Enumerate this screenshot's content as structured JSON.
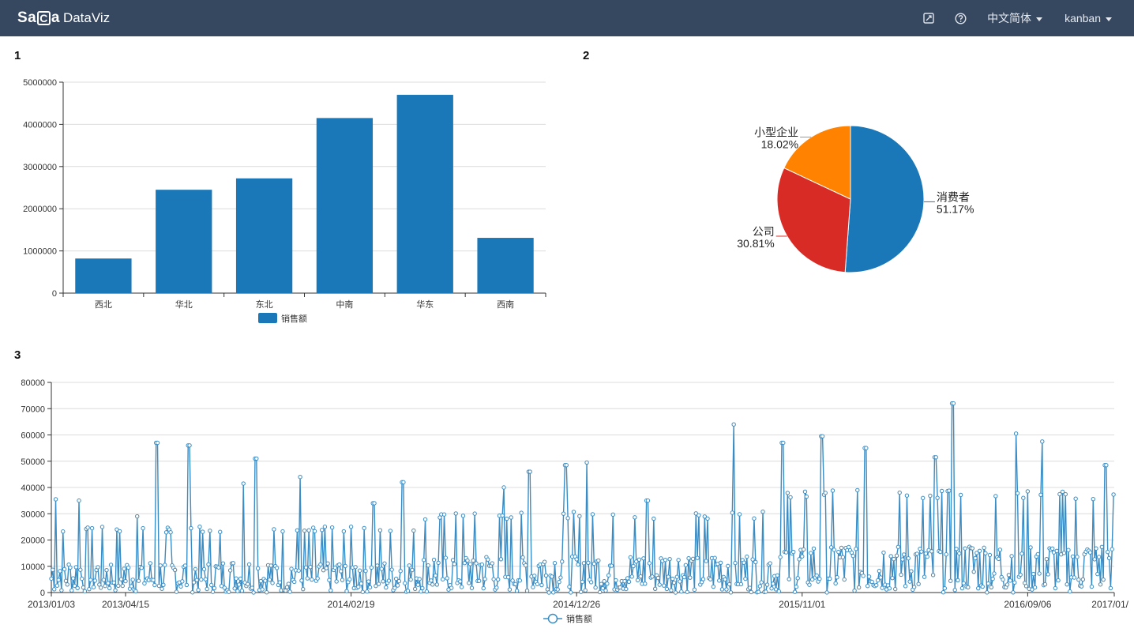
{
  "header": {
    "brand_mark": "Sa",
    "brand_mark2": "a",
    "brand_text": "DataViz",
    "icons": [
      "edit-icon",
      "help-icon"
    ],
    "language_label": "中文简体",
    "user_label": "kanban"
  },
  "panels": [
    {
      "title": "1"
    },
    {
      "title": "2"
    },
    {
      "title": "3"
    }
  ],
  "chart_data": [
    {
      "type": "bar",
      "title": "",
      "categories": [
        "西北",
        "华北",
        "东北",
        "中南",
        "华东",
        "西南"
      ],
      "series": [
        {
          "name": "销售额",
          "values": [
            820000,
            2450000,
            2720000,
            4150000,
            4700000,
            1310000
          ]
        }
      ],
      "ylim": [
        0,
        5000000
      ],
      "yticks": [
        0,
        1000000,
        2000000,
        3000000,
        4000000,
        5000000
      ],
      "grid": true,
      "legend": "bottom",
      "colors": [
        "#1a78b8"
      ]
    },
    {
      "type": "pie",
      "title": "",
      "slices": [
        {
          "label": "消费者",
          "percent_label": "51.17%",
          "value": 51.17,
          "color": "#1a78b8"
        },
        {
          "label": "公司",
          "percent_label": "30.81%",
          "value": 30.81,
          "color": "#d92b25"
        },
        {
          "label": "小型企业",
          "percent_label": "18.02%",
          "value": 18.02,
          "color": "#ff8200"
        }
      ]
    },
    {
      "type": "line",
      "title": "",
      "series": [
        {
          "name": "销售额"
        }
      ],
      "x_start": "2013/01/03",
      "x_end": "2017/01/",
      "x_tick_labels": [
        "2013/01/03",
        "2013/04/15",
        "2014/02/19",
        "2014/12/26",
        "2015/11/01",
        "2016/09/06",
        "2017/01/"
      ],
      "ylim": [
        0,
        80000
      ],
      "yticks": [
        0,
        10000,
        20000,
        30000,
        40000,
        50000,
        60000,
        70000,
        80000
      ],
      "peaks": [
        {
          "x": "2013/01/09",
          "y": 35500
        },
        {
          "x": "2013/02/10",
          "y": 35000
        },
        {
          "x": "2013/05/01",
          "y": 29000
        },
        {
          "x": "2013/05/28",
          "y": 57000
        },
        {
          "x": "2013/07/11",
          "y": 56000
        },
        {
          "x": "2013/09/24",
          "y": 41500
        },
        {
          "x": "2013/10/11",
          "y": 51000
        },
        {
          "x": "2013/12/11",
          "y": 44000
        },
        {
          "x": "2014/03/22",
          "y": 34000
        },
        {
          "x": "2014/05/01",
          "y": 42000
        },
        {
          "x": "2014/09/17",
          "y": 40000
        },
        {
          "x": "2014/10/22",
          "y": 46000
        },
        {
          "x": "2014/12/11",
          "y": 48500
        },
        {
          "x": "2015/01/09",
          "y": 49500
        },
        {
          "x": "2015/04/02",
          "y": 35000
        },
        {
          "x": "2015/07/30",
          "y": 64000
        },
        {
          "x": "2015/10/05",
          "y": 57000
        },
        {
          "x": "2015/11/28",
          "y": 59500
        },
        {
          "x": "2016/01/27",
          "y": 55000
        },
        {
          "x": "2016/05/02",
          "y": 51500
        },
        {
          "x": "2016/05/26",
          "y": 72000
        },
        {
          "x": "2016/08/21",
          "y": 60500
        },
        {
          "x": "2016/09/26",
          "y": 57500
        },
        {
          "x": "2016/12/22",
          "y": 48500
        }
      ],
      "grid": true,
      "legend": "bottom",
      "colors": [
        "#3a8dc4"
      ],
      "marker": "circle"
    }
  ]
}
